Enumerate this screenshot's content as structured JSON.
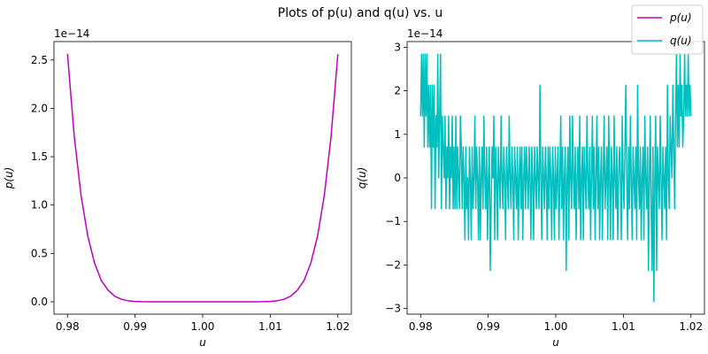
{
  "figure_title": "Plots of p(u) and q(u) vs. u",
  "legend": {
    "placement": "top-right",
    "entries": [
      {
        "label": "p(u)",
        "color": "#bf00bf"
      },
      {
        "label": "q(u)",
        "color": "#00bfbf"
      }
    ]
  },
  "chart_data": [
    {
      "type": "line",
      "xlabel": "u",
      "ylabel": "p(u)",
      "offset_text": "1e−14",
      "xlim": [
        0.978,
        1.022
      ],
      "ylim": [
        -0.128,
        2.69
      ],
      "xticks": [
        0.98,
        0.99,
        1.0,
        1.01,
        1.02
      ],
      "xtick_labels": [
        "0.98",
        "0.99",
        "1.00",
        "1.01",
        "1.02"
      ],
      "yticks": [
        0.0,
        0.5,
        1.0,
        1.5,
        2.0,
        2.5
      ],
      "ytick_labels": [
        "0.0",
        "0.5",
        "1.0",
        "1.5",
        "2.0",
        "2.5"
      ],
      "series": [
        {
          "color": "#bf00bf",
          "x": [
            0.98,
            0.981,
            0.982,
            0.983,
            0.984,
            0.985,
            0.986,
            0.987,
            0.988,
            0.989,
            0.99,
            0.991,
            0.992,
            0.993,
            0.994,
            0.995,
            0.996,
            0.997,
            0.998,
            0.999,
            1.0,
            1.001,
            1.002,
            1.003,
            1.004,
            1.005,
            1.006,
            1.007,
            1.008,
            1.009,
            1.01,
            1.011,
            1.012,
            1.013,
            1.014,
            1.015,
            1.016,
            1.017,
            1.018,
            1.019,
            1.02
          ],
          "y": [
            2.56,
            1.71,
            1.1,
            0.68,
            0.4,
            0.22,
            0.12,
            0.057,
            0.026,
            0.01,
            0.004,
            0.0013,
            0.0003,
            0.0001,
            0,
            0,
            0,
            0,
            0,
            0,
            0,
            0,
            0,
            0,
            0,
            0,
            0,
            0.0001,
            0.0003,
            0.0013,
            0.004,
            0.01,
            0.026,
            0.057,
            0.12,
            0.22,
            0.4,
            0.68,
            1.1,
            1.71,
            2.56
          ]
        }
      ]
    },
    {
      "type": "line",
      "xlabel": "u",
      "ylabel": "q(u)",
      "offset_text": "1e−14",
      "xlim": [
        0.978,
        1.022
      ],
      "ylim": [
        -3.13,
        3.13
      ],
      "xticks": [
        0.98,
        0.99,
        1.0,
        1.01,
        1.02
      ],
      "xtick_labels": [
        "0.98",
        "0.99",
        "1.00",
        "1.01",
        "1.02"
      ],
      "yticks": [
        -3,
        -2,
        -1,
        0,
        1,
        2,
        3
      ],
      "ytick_labels": [
        "−3",
        "−2",
        "−1",
        "0",
        "1",
        "2",
        "3"
      ],
      "series": [
        {
          "color": "#00bfbf",
          "x_start": 0.98,
          "x_end": 1.02,
          "y": [
            1.42,
            2.84,
            1.42,
            2.84,
            0.71,
            2.84,
            1.42,
            2.84,
            0.71,
            2.13,
            0.71,
            2.13,
            -0.71,
            2.13,
            0.71,
            2.13,
            -0.71,
            1.42,
            0.71,
            2.84,
            0.0,
            1.42,
            2.84,
            -0.71,
            1.42,
            0.71,
            0.0,
            1.42,
            -0.71,
            0.71,
            0.0,
            1.42,
            -0.71,
            0.71,
            0.0,
            1.42,
            -0.71,
            0.71,
            -0.71,
            1.42,
            -0.71,
            0.71,
            0.0,
            -0.71,
            1.42,
            0.71,
            -0.71,
            0.71,
            0.0,
            -1.42,
            0.71,
            -0.71,
            0.0,
            -1.42,
            0.71,
            0.0,
            -1.42,
            0.71,
            -0.71,
            0.0,
            1.42,
            -0.71,
            0.71,
            0.0,
            -1.42,
            0.71,
            -1.42,
            0.0,
            0.71,
            -0.71,
            1.42,
            0.0,
            -0.71,
            0.71,
            -1.42,
            0.0,
            0.71,
            -2.13,
            -0.71,
            0.71,
            0.0,
            1.42,
            -1.42,
            0.71,
            0.0,
            -1.42,
            0.71,
            0.0,
            -0.71,
            1.42,
            0.0,
            -0.71,
            0.71,
            0.0,
            -1.42,
            0.71,
            0.0,
            -0.71,
            1.42,
            0.0,
            -0.71,
            0.71,
            0.0,
            -1.42,
            0.71,
            0.0,
            -0.71,
            0.71,
            -1.42,
            0.0,
            0.71,
            -0.71,
            0.71,
            -1.42,
            0.0,
            0.71,
            -0.71,
            0.71,
            0.0,
            -0.71,
            0.71,
            0.0,
            -1.42,
            0.71,
            0.0,
            -1.42,
            0.71,
            0.0,
            -0.71,
            0.71,
            0.0,
            -0.71,
            2.13,
            0.0,
            -1.42,
            0.71,
            0.0,
            -0.71,
            0.71,
            0.0,
            -1.42,
            0.71,
            -0.71,
            0.71,
            0.0,
            -1.42,
            0.71,
            0.0,
            -1.42,
            0.71,
            -0.71,
            0.0,
            0.71,
            -1.42,
            0.0,
            1.42,
            -0.71,
            0.71,
            -1.42,
            0.0,
            0.71,
            -2.13,
            0.0,
            0.71,
            -1.42,
            1.42,
            0.0,
            -0.71,
            1.42,
            0.0,
            -0.71,
            0.71,
            -1.42,
            0.0,
            0.71,
            -0.71,
            1.42,
            -1.42,
            0.0,
            0.71,
            -1.42,
            0.71,
            0.0,
            -0.71,
            1.42,
            0.0,
            -0.71,
            0.71,
            -1.42,
            0.0,
            1.42,
            -0.71,
            0.71,
            -1.42,
            0.0,
            1.42,
            -0.71,
            0.71,
            -1.42,
            0.0,
            0.71,
            -1.42,
            0.0,
            1.42,
            -0.71,
            0.0,
            0.71,
            -1.42,
            1.42,
            0.0,
            -1.42,
            0.71,
            0.0,
            -1.42,
            1.42,
            0.0,
            -0.71,
            0.71,
            -1.42,
            0.0,
            0.71,
            0.0,
            -1.42,
            1.42,
            0.0,
            -0.71,
            0.71,
            2.13,
            0.0,
            -1.42,
            0.71,
            -0.71,
            1.42,
            0.0,
            -1.42,
            0.71,
            0.0,
            -0.71,
            0.71,
            -1.42,
            2.13,
            0.0,
            -0.71,
            0.71,
            -1.42,
            0.0,
            0.71,
            -1.42,
            1.42,
            0.0,
            -0.71,
            0.71,
            -2.13,
            0.0,
            1.42,
            -0.71,
            -2.13,
            0.71,
            -2.84,
            0.0,
            1.42,
            -2.13,
            0.71,
            0.0,
            -0.71,
            1.42,
            0.0,
            -1.42,
            0.71,
            0.0,
            -0.71,
            0.71,
            -1.42,
            2.13,
            0.0,
            -0.71,
            1.42,
            0.71,
            0.0,
            2.13,
            0.71,
            -0.71,
            1.42,
            2.84,
            0.71,
            2.13,
            0.71,
            2.84,
            1.42,
            2.13,
            0.71,
            1.42,
            2.84,
            1.42,
            2.13,
            1.42,
            2.84,
            1.42,
            2.13,
            1.42
          ]
        }
      ]
    }
  ]
}
